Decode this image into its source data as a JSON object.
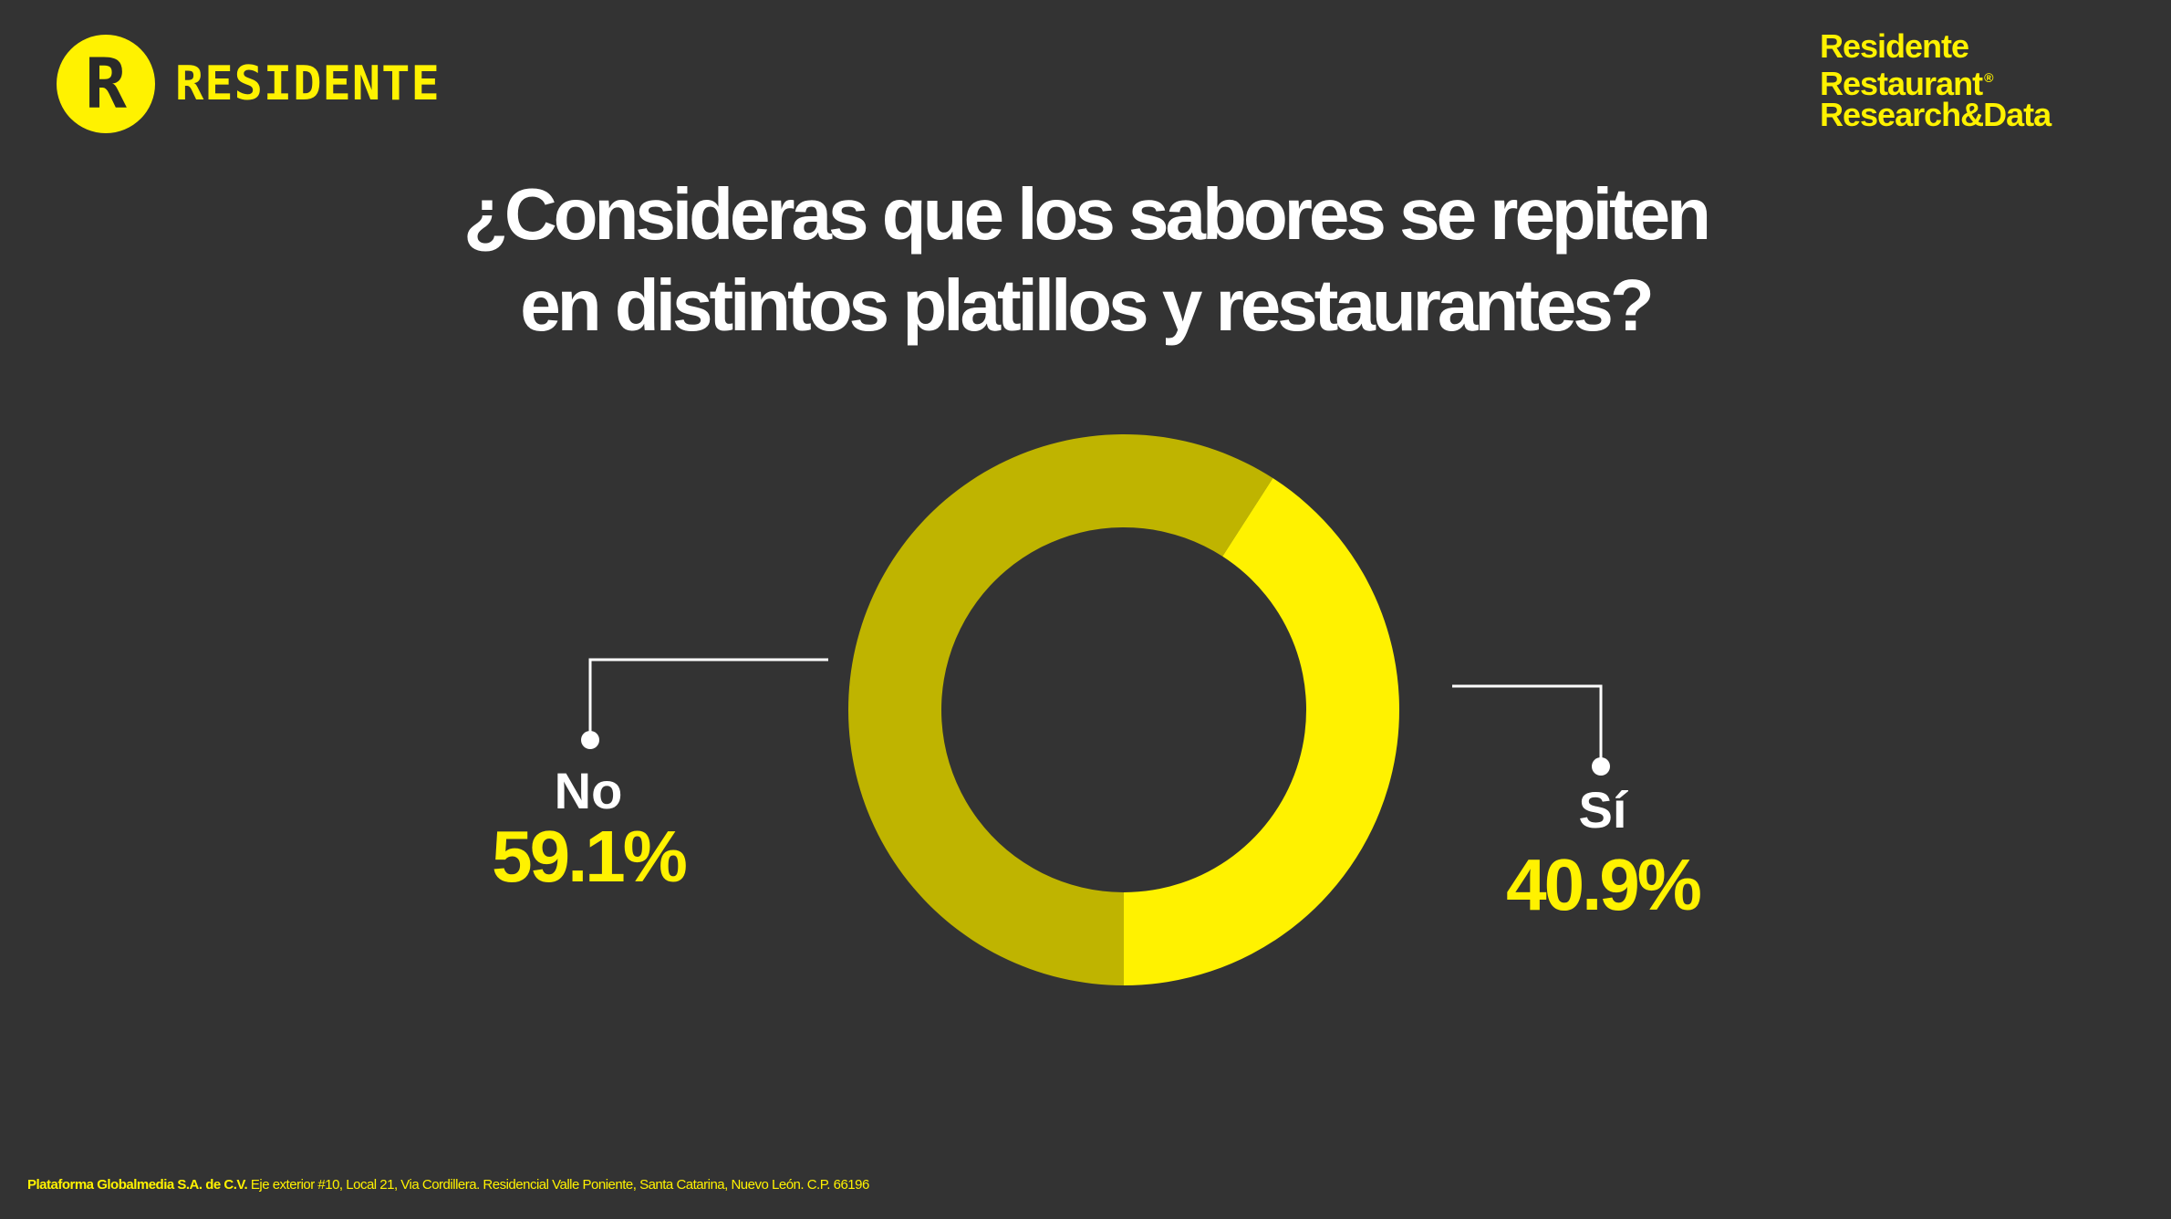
{
  "header": {
    "logo_letter": "R",
    "logo_text": "RESIDENTE",
    "brand_lines": [
      "Residente",
      "Restaurant",
      "Research&Data"
    ],
    "brand_mark": "®"
  },
  "colors": {
    "background": "#333333",
    "accent": "#FFF200",
    "no_slice": "#BFB400",
    "si_slice": "#FFF200",
    "text": "#FFFFFF"
  },
  "footer": {
    "company": "Plataforma Globalmedia S.A. de C.V.",
    "address": " Eje exterior #10, Local 21, Via Cordillera. Residencial Valle Poniente, Santa Catarina, Nuevo León. C.P. 66196"
  },
  "chart_data": {
    "type": "pie",
    "variant": "donut",
    "title": "¿Consideras que los sabores se repiten en distintos platillos y restaurantes?",
    "title_lines": [
      "¿Consideras que los sabores se repiten",
      "en distintos platillos y restaurantes?"
    ],
    "categories": [
      "No",
      "Sí"
    ],
    "values": [
      59.1,
      40.9
    ],
    "value_labels": [
      "59.1%",
      "40.9%"
    ],
    "legend": "none"
  }
}
